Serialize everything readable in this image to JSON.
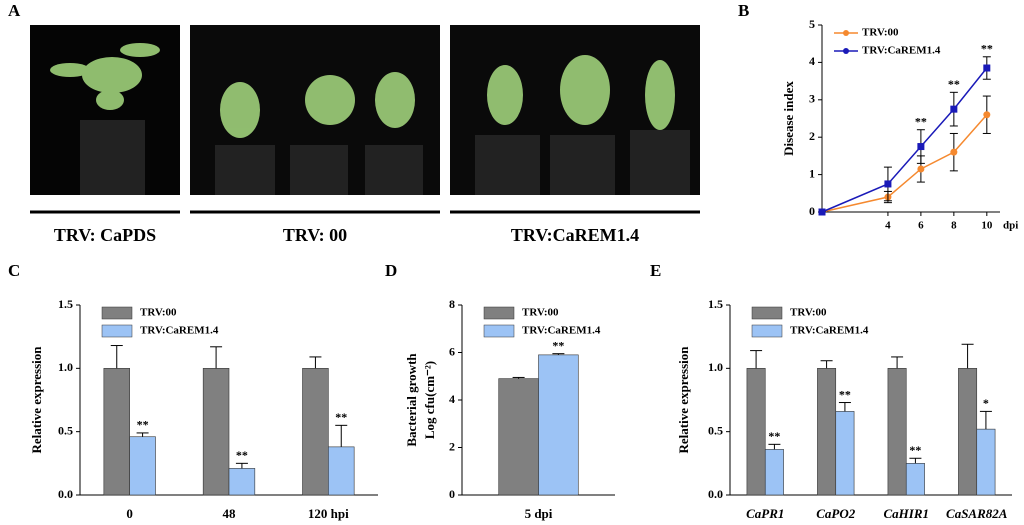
{
  "figure": {
    "panel_labels": [
      "A",
      "B",
      "C",
      "D",
      "E"
    ],
    "photo_captions": [
      "TRV: CaPDS",
      "TRV: 00",
      "TRV:CaREM1.4"
    ]
  },
  "chart_data": [
    {
      "type": "line",
      "ylabel": "Disease index",
      "x": [
        0,
        4,
        6,
        8,
        10
      ],
      "xlim": [
        0,
        10.8
      ],
      "xticks": [
        4,
        6,
        8,
        10
      ],
      "x_unit": "dpi",
      "ylim": [
        0,
        5
      ],
      "yticks": [
        0,
        1,
        2,
        3,
        4,
        5
      ],
      "legend": "top-left",
      "series": [
        {
          "name": "TRV:00",
          "color": "#f5892f",
          "values": [
            0,
            0.4,
            1.15,
            1.6,
            2.6
          ],
          "errors": [
            0,
            0.15,
            0.35,
            0.5,
            0.5
          ]
        },
        {
          "name": "TRV:CaREM1.4",
          "color": "#1a1ab8",
          "values": [
            0,
            0.75,
            1.75,
            2.75,
            3.85
          ],
          "errors": [
            0,
            0.45,
            0.45,
            0.45,
            0.3
          ],
          "significance": [
            null,
            null,
            "**",
            "**",
            "**"
          ]
        }
      ]
    },
    {
      "type": "bar",
      "ylabel": "Relative expression",
      "categories": [
        "0",
        "48",
        "120 hpi"
      ],
      "ylim": [
        0,
        1.5
      ],
      "yticks": [
        {
          "value": 0,
          "label": "0.0"
        },
        {
          "value": 0.5,
          "label": "0.5"
        },
        {
          "value": 1,
          "label": "1.0"
        },
        {
          "value": 1.5,
          "label": "1.5"
        }
      ],
      "legend": "top-left",
      "series": [
        {
          "name": "TRV:00",
          "color": "#808080",
          "values": [
            1.0,
            1.0,
            1.0
          ],
          "errors": [
            0.18,
            0.17,
            0.09
          ]
        },
        {
          "name": "TRV:CaREM1.4",
          "color": "#9cc3f5",
          "values": [
            0.46,
            0.21,
            0.38
          ],
          "errors": [
            0.03,
            0.04,
            0.17
          ],
          "significance": [
            "**",
            "**",
            "**"
          ]
        }
      ]
    },
    {
      "type": "bar",
      "ylabel": "Bacterial growth",
      "ylabel2": "Log cfu(cm⁻²)",
      "categories": [
        "5 dpi"
      ],
      "ylim": [
        0,
        8
      ],
      "yticks": [
        0,
        2,
        4,
        6,
        8
      ],
      "legend": "top-left",
      "series": [
        {
          "name": "TRV:00",
          "color": "#808080",
          "values": [
            4.9
          ],
          "errors": [
            0.05
          ]
        },
        {
          "name": "TRV:CaREM1.4",
          "color": "#9cc3f5",
          "values": [
            5.9
          ],
          "errors": [
            0.05
          ],
          "significance": [
            "**"
          ]
        }
      ]
    },
    {
      "type": "bar",
      "ylabel": "Relative expression",
      "categories": [
        "CaPR1",
        "CaPO2",
        "CaHIR1",
        "CaSAR82A"
      ],
      "italic_categories": true,
      "ylim": [
        0,
        1.5
      ],
      "yticks": [
        {
          "value": 0,
          "label": "0.0"
        },
        {
          "value": 0.5,
          "label": "0.5"
        },
        {
          "value": 1,
          "label": "1.0"
        },
        {
          "value": 1.5,
          "label": "1.5"
        }
      ],
      "legend": "top-left",
      "series": [
        {
          "name": "TRV:00",
          "color": "#808080",
          "values": [
            1.0,
            1.0,
            1.0,
            1.0
          ],
          "errors": [
            0.14,
            0.06,
            0.09,
            0.19
          ]
        },
        {
          "name": "TRV:CaREM1.4",
          "color": "#9cc3f5",
          "values": [
            0.36,
            0.66,
            0.25,
            0.52
          ],
          "errors": [
            0.04,
            0.07,
            0.04,
            0.14
          ],
          "significance": [
            "**",
            "**",
            "**",
            "*"
          ]
        }
      ]
    }
  ]
}
